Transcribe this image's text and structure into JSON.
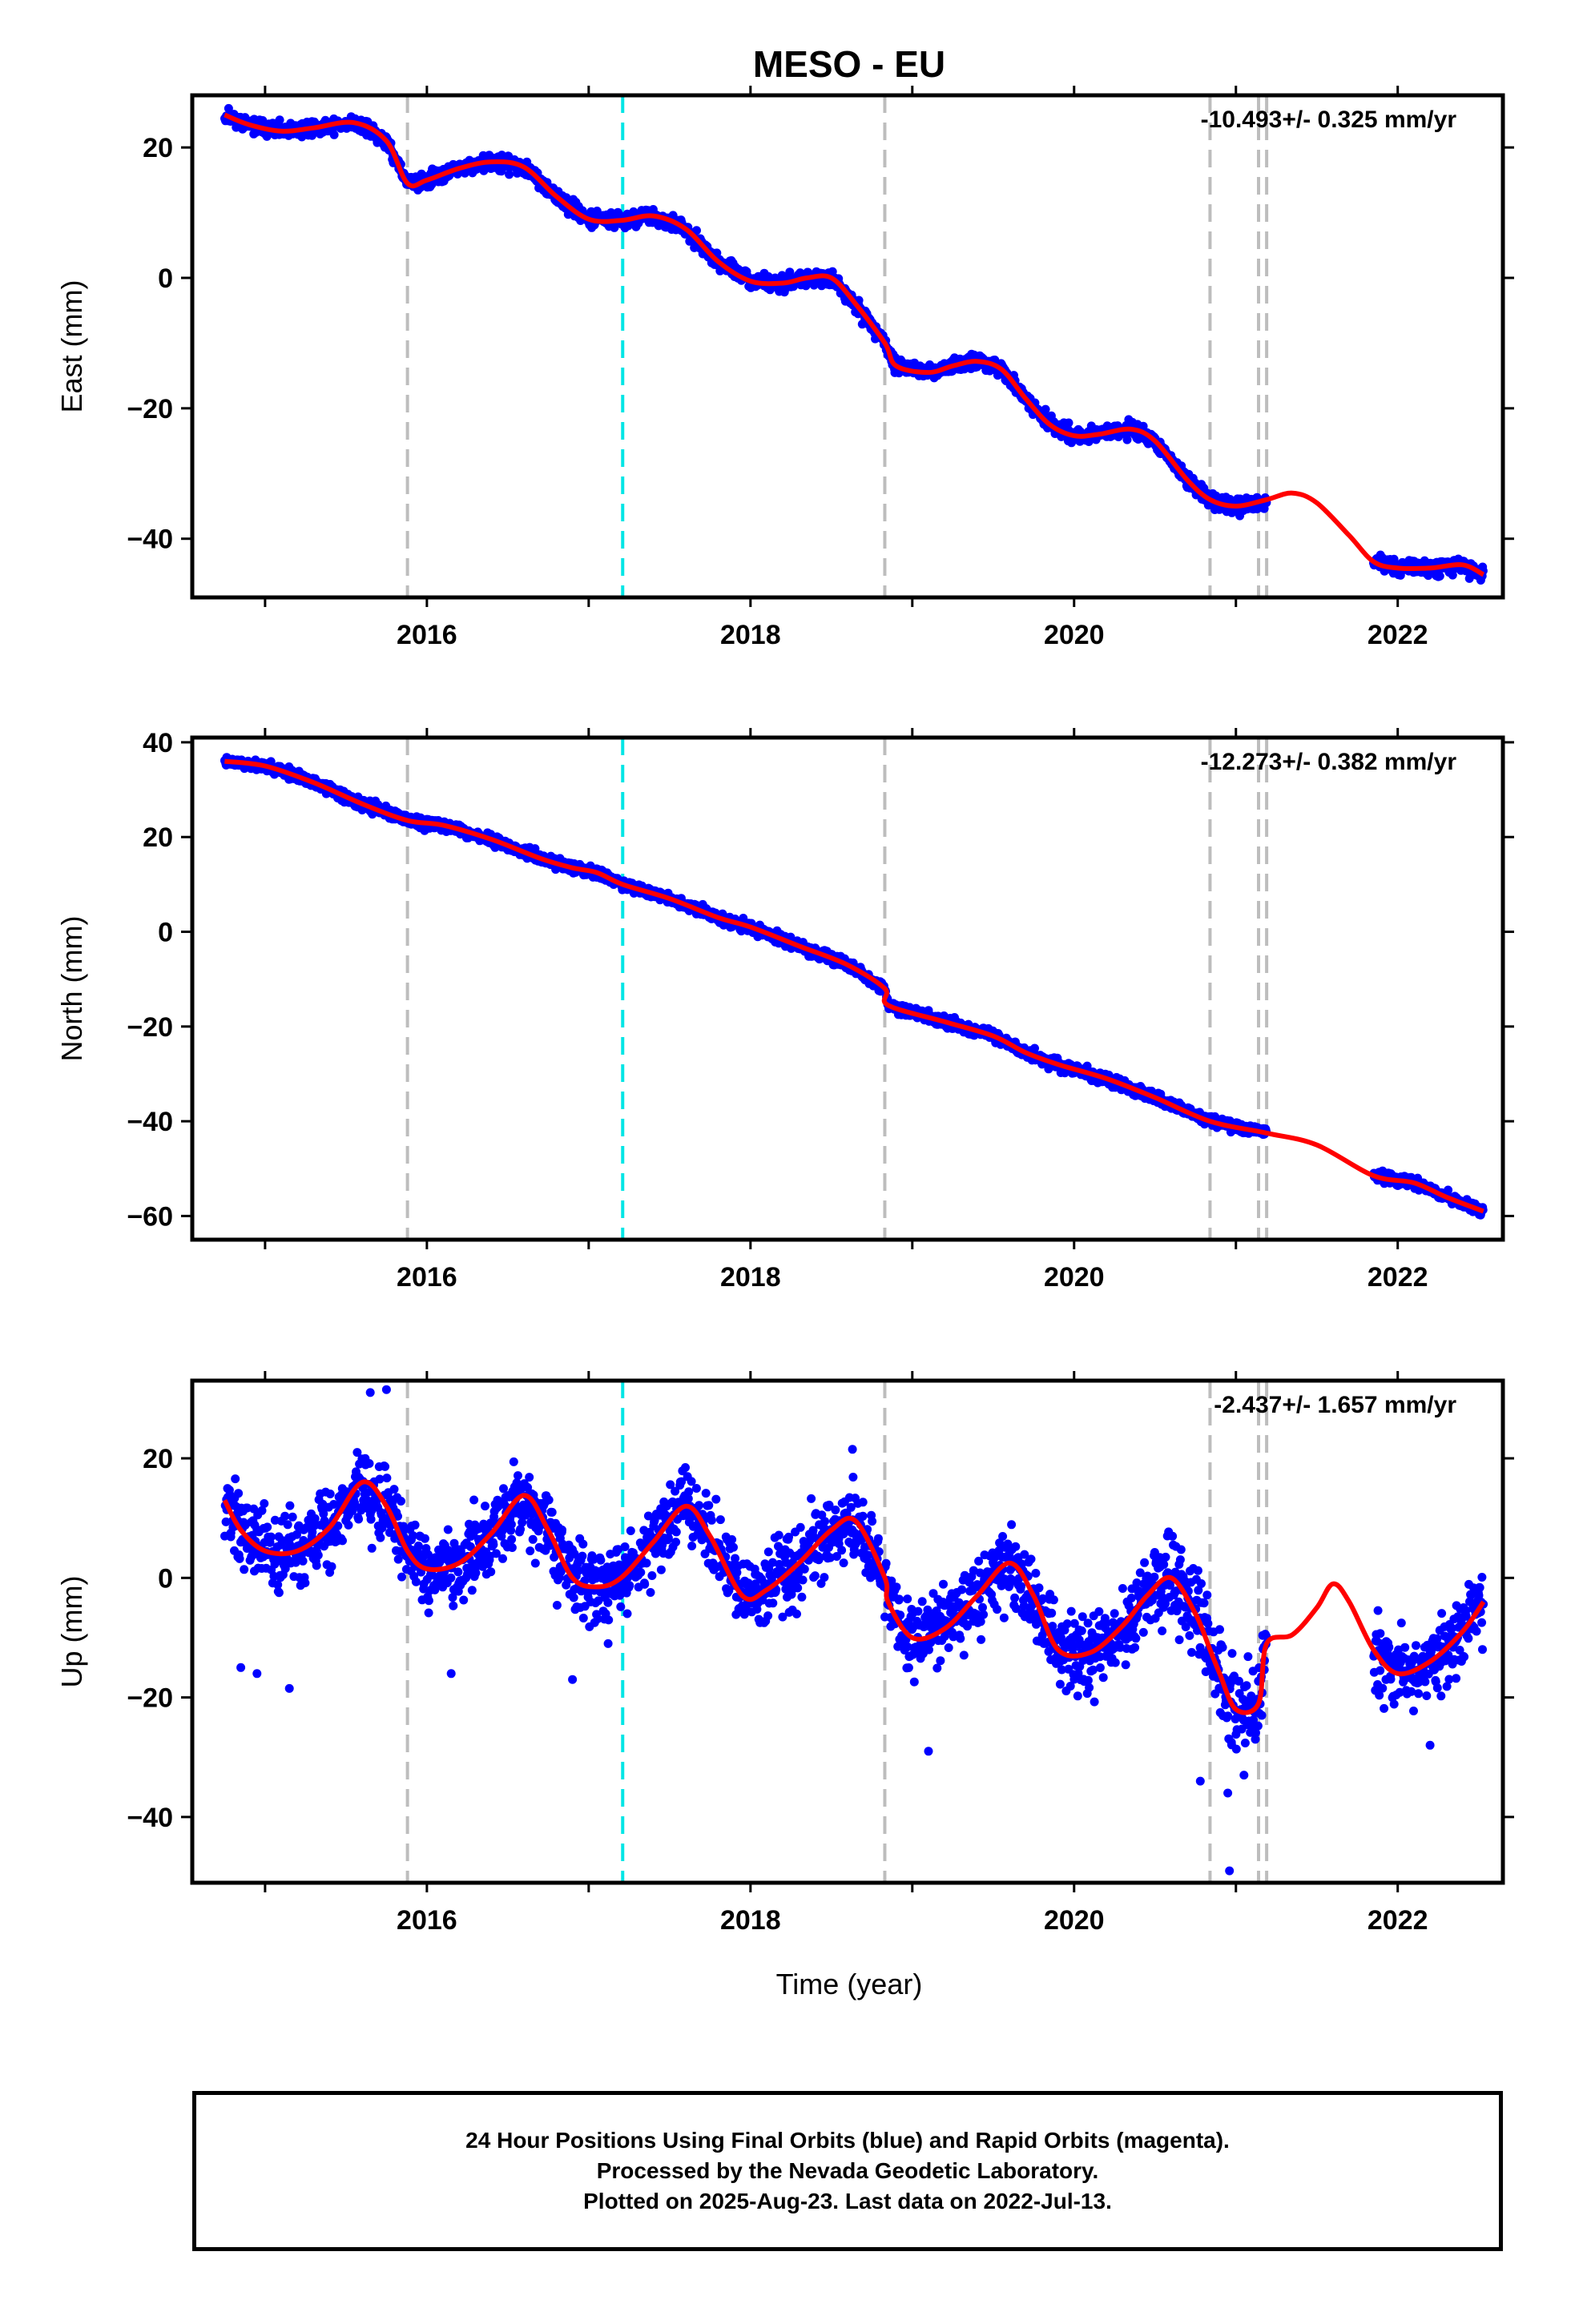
{
  "title": "MESO - EU",
  "xlabel": "Time (year)",
  "footer": {
    "line1": "24 Hour Positions Using Final Orbits (blue) and Rapid Orbits (magenta).",
    "line2": "Processed by the Nevada Geodetic Laboratory.",
    "line3": "Plotted on 2025-Aug-23. Last data on 2022-Jul-13."
  },
  "colors": {
    "data": "#0000ff",
    "model": "#ff0000",
    "equipment_change": "#bdbdbd",
    "earthquake": "#00e5e5"
  },
  "chart_data": [
    {
      "type": "scatter",
      "component": "east",
      "ylabel": "East (mm)",
      "rate_text": "-10.493+/- 0.325 mm/yr",
      "xlim": [
        2014.55,
        2022.65
      ],
      "ylim": [
        -49,
        28
      ],
      "xticks": [
        "2016",
        "2018",
        "2020",
        "2022"
      ],
      "yticks": [
        "20",
        "0",
        "−20",
        "−40"
      ],
      "ytick_values": [
        20,
        0,
        -20,
        -40
      ],
      "vlines_gray": [
        2015.88,
        2018.83,
        2020.84,
        2021.14,
        2021.19
      ],
      "vlines_cyan": [
        2017.21
      ],
      "model_curve": [
        [
          2014.75,
          25
        ],
        [
          2014.9,
          23.5
        ],
        [
          2015.1,
          22.5
        ],
        [
          2015.3,
          23
        ],
        [
          2015.55,
          23.8
        ],
        [
          2015.75,
          21
        ],
        [
          2015.88,
          14.5
        ],
        [
          2016.0,
          15
        ],
        [
          2016.2,
          16.8
        ],
        [
          2016.4,
          17.8
        ],
        [
          2016.6,
          17
        ],
        [
          2016.8,
          12.5
        ],
        [
          2017.0,
          9
        ],
        [
          2017.2,
          8.8
        ],
        [
          2017.4,
          9.5
        ],
        [
          2017.6,
          7.5
        ],
        [
          2017.8,
          2.5
        ],
        [
          2018.0,
          -0.5
        ],
        [
          2018.2,
          -0.8
        ],
        [
          2018.35,
          0
        ],
        [
          2018.5,
          0
        ],
        [
          2018.65,
          -4
        ],
        [
          2018.83,
          -10
        ],
        [
          2018.9,
          -13.5
        ],
        [
          2019.1,
          -14.5
        ],
        [
          2019.25,
          -13.5
        ],
        [
          2019.4,
          -12.8
        ],
        [
          2019.55,
          -14
        ],
        [
          2019.7,
          -18.5
        ],
        [
          2019.85,
          -22.5
        ],
        [
          2020.0,
          -24.2
        ],
        [
          2020.15,
          -24
        ],
        [
          2020.35,
          -23.2
        ],
        [
          2020.5,
          -25
        ],
        [
          2020.7,
          -31
        ],
        [
          2020.84,
          -34
        ],
        [
          2021.0,
          -35
        ],
        [
          2021.19,
          -34
        ],
        [
          2021.35,
          -33
        ],
        [
          2021.5,
          -34.5
        ],
        [
          2021.7,
          -39.5
        ],
        [
          2021.85,
          -43.5
        ],
        [
          2022.0,
          -44.5
        ],
        [
          2022.2,
          -44.5
        ],
        [
          2022.4,
          -44
        ],
        [
          2022.53,
          -45.5
        ]
      ],
      "scatter": {
        "seed": 11,
        "segments": [
          [
            2014.75,
            2021.19,
            1.0
          ],
          [
            2021.85,
            2022.53,
            1.0
          ]
        ],
        "count": 2400,
        "outliers": []
      }
    },
    {
      "type": "scatter",
      "component": "north",
      "ylabel": "North (mm)",
      "rate_text": "-12.273+/- 0.382 mm/yr",
      "xlim": [
        2014.55,
        2022.65
      ],
      "ylim": [
        -65,
        41
      ],
      "xticks": [
        "2016",
        "2018",
        "2020",
        "2022"
      ],
      "yticks": [
        "40",
        "20",
        "0",
        "−20",
        "−40",
        "−60"
      ],
      "ytick_values": [
        40,
        20,
        0,
        -20,
        -40,
        -60
      ],
      "vlines_gray": [
        2015.88,
        2018.83,
        2020.84,
        2021.14,
        2021.19
      ],
      "vlines_cyan": [
        2017.21
      ],
      "model_curve": [
        [
          2014.75,
          36
        ],
        [
          2015.0,
          35
        ],
        [
          2015.3,
          31.5
        ],
        [
          2015.6,
          27
        ],
        [
          2015.88,
          23.5
        ],
        [
          2016.1,
          22.5
        ],
        [
          2016.4,
          19.5
        ],
        [
          2016.7,
          15.5
        ],
        [
          2016.9,
          13.5
        ],
        [
          2017.05,
          12.5
        ],
        [
          2017.21,
          10
        ],
        [
          2017.5,
          7
        ],
        [
          2017.8,
          3
        ],
        [
          2018.0,
          1
        ],
        [
          2018.3,
          -3
        ],
        [
          2018.6,
          -7
        ],
        [
          2018.83,
          -12
        ],
        [
          2018.85,
          -15.5
        ],
        [
          2019.2,
          -19
        ],
        [
          2019.5,
          -22
        ],
        [
          2019.7,
          -25.5
        ],
        [
          2019.9,
          -28
        ],
        [
          2020.2,
          -31
        ],
        [
          2020.5,
          -35
        ],
        [
          2020.84,
          -40
        ],
        [
          2021.19,
          -42.5
        ],
        [
          2021.5,
          -45
        ],
        [
          2021.85,
          -51.5
        ],
        [
          2022.1,
          -53
        ],
        [
          2022.3,
          -56
        ],
        [
          2022.53,
          -59
        ]
      ],
      "scatter": {
        "seed": 23,
        "segments": [
          [
            2014.75,
            2021.19,
            1.0
          ],
          [
            2021.85,
            2022.53,
            1.0
          ]
        ],
        "count": 2400,
        "outliers": []
      }
    },
    {
      "type": "scatter",
      "component": "up",
      "ylabel": "Up (mm)",
      "rate_text": "-2.437+/- 1.657 mm/yr",
      "xlim": [
        2014.55,
        2022.65
      ],
      "ylim": [
        -51,
        33
      ],
      "xticks": [
        "2016",
        "2018",
        "2020",
        "2022"
      ],
      "yticks": [
        "20",
        "0",
        "−20",
        "−40"
      ],
      "ytick_values": [
        20,
        0,
        -20,
        -40
      ],
      "vlines_gray": [
        2015.88,
        2018.83,
        2020.84,
        2021.14,
        2021.19
      ],
      "vlines_cyan": [
        2017.21
      ],
      "model_curve": [
        [
          2014.75,
          13
        ],
        [
          2014.85,
          8
        ],
        [
          2015.0,
          4.5
        ],
        [
          2015.2,
          4.5
        ],
        [
          2015.4,
          8.5
        ],
        [
          2015.6,
          16
        ],
        [
          2015.75,
          12
        ],
        [
          2015.88,
          4.5
        ],
        [
          2016.0,
          1.5
        ],
        [
          2016.2,
          2.5
        ],
        [
          2016.4,
          7.5
        ],
        [
          2016.6,
          13.8
        ],
        [
          2016.75,
          8
        ],
        [
          2016.9,
          0
        ],
        [
          2017.05,
          -1.5
        ],
        [
          2017.2,
          0
        ],
        [
          2017.4,
          6
        ],
        [
          2017.6,
          12
        ],
        [
          2017.75,
          7
        ],
        [
          2017.95,
          -3
        ],
        [
          2018.1,
          -2
        ],
        [
          2018.3,
          2.5
        ],
        [
          2018.5,
          8
        ],
        [
          2018.65,
          9.5
        ],
        [
          2018.83,
          0
        ],
        [
          2018.85,
          -4
        ],
        [
          2019.0,
          -10
        ],
        [
          2019.2,
          -8.5
        ],
        [
          2019.4,
          -3
        ],
        [
          2019.6,
          2.5
        ],
        [
          2019.75,
          -3
        ],
        [
          2019.9,
          -12
        ],
        [
          2020.1,
          -12.5
        ],
        [
          2020.3,
          -8
        ],
        [
          2020.45,
          -3
        ],
        [
          2020.6,
          0
        ],
        [
          2020.75,
          -6
        ],
        [
          2020.84,
          -12
        ],
        [
          2020.9,
          -16
        ],
        [
          2021.0,
          -22
        ],
        [
          2021.14,
          -21
        ],
        [
          2021.19,
          -11
        ],
        [
          2021.35,
          -9.5
        ],
        [
          2021.5,
          -5
        ],
        [
          2021.6,
          -1
        ],
        [
          2021.7,
          -4
        ],
        [
          2021.85,
          -12
        ],
        [
          2022.0,
          -16
        ],
        [
          2022.2,
          -14
        ],
        [
          2022.4,
          -9
        ],
        [
          2022.53,
          -4
        ]
      ],
      "scatter": {
        "seed": 37,
        "segments": [
          [
            2014.75,
            2021.19,
            5.5
          ],
          [
            2021.85,
            2022.53,
            5.5
          ]
        ],
        "count": 2200,
        "outliers": [
          [
            2014.85,
            -15
          ],
          [
            2014.95,
            -16
          ],
          [
            2015.15,
            -18.5
          ],
          [
            2015.65,
            31
          ],
          [
            2015.75,
            31.5
          ],
          [
            2016.15,
            -16
          ],
          [
            2016.9,
            -17
          ],
          [
            2017.12,
            -11
          ],
          [
            2018.63,
            21.5
          ],
          [
            2019.1,
            -29
          ],
          [
            2020.78,
            -34
          ],
          [
            2020.95,
            -36
          ],
          [
            2020.96,
            -49
          ],
          [
            2021.05,
            -33
          ],
          [
            2021.12,
            -27
          ],
          [
            2022.2,
            -28
          ]
        ]
      }
    }
  ]
}
